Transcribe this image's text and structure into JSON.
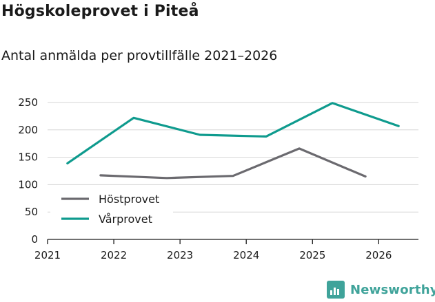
{
  "title": "Högskoleprovet i Piteå",
  "subtitle": "Antal anmälda per provtillfälle 2021–2026",
  "brand": {
    "name": "Newsworthy",
    "color": "#3fa39a"
  },
  "chart_data": {
    "type": "line",
    "title": "Högskoleprovet i Piteå",
    "subtitle": "Antal anmälda per provtillfälle 2021–2026",
    "xlabel": "",
    "ylabel": "",
    "xlim": [
      2021,
      2026.6
    ],
    "ylim": [
      0,
      250
    ],
    "x_ticks": [
      2021,
      2022,
      2023,
      2024,
      2025,
      2026
    ],
    "y_ticks": [
      0,
      50,
      100,
      150,
      200,
      250
    ],
    "grid": true,
    "legend_position": "bottom-left",
    "series": [
      {
        "name": "Höstprovet",
        "color": "#6b6a6f",
        "x": [
          2021.8,
          2022.8,
          2023.8,
          2024.8,
          2025.8
        ],
        "values": [
          117,
          112,
          116,
          166,
          115
        ]
      },
      {
        "name": "Vårprovet",
        "color": "#0f9b8e",
        "x": [
          2021.3,
          2022.3,
          2023.3,
          2024.3,
          2025.3,
          2026.3
        ],
        "values": [
          139,
          222,
          191,
          188,
          249,
          207
        ]
      }
    ]
  }
}
